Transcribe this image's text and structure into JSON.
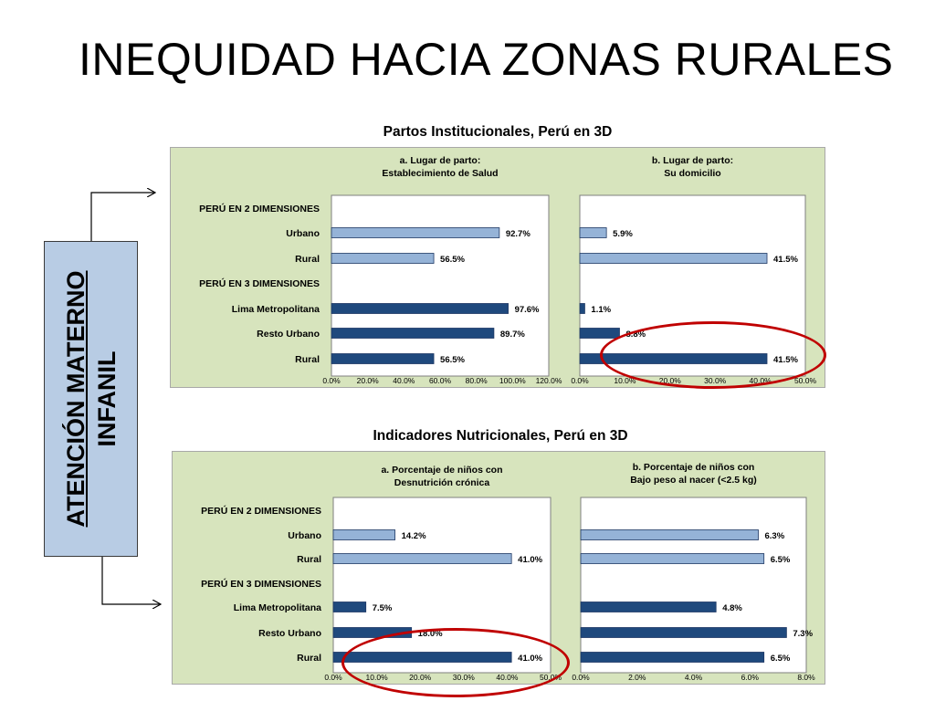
{
  "slide_title": "INEQUIDAD HACIA ZONAS RURALES",
  "side_box": {
    "line1": "ATENCIÓN MATERNO",
    "line2": "INFANIL",
    "fill": "#b8cce4"
  },
  "colors": {
    "light_bar": "#95b3d7",
    "dark_bar": "#1f497d",
    "panel": "#d7e4bd",
    "highlight": "#c00000"
  },
  "sections": [
    {
      "title": "Partos Institucionales, Perú en 3D",
      "row_labels": [
        "PERÚ EN 2 DIMENSIONES",
        "Urbano",
        "Rural",
        "PERÚ EN 3 DIMENSIONES",
        "Lima Metropolitana",
        "Resto Urbano",
        "Rural"
      ]
    },
    {
      "title": "Indicadores Nutricionales, Perú en 3D",
      "row_labels": [
        "PERÚ EN 2 DIMENSIONES",
        "Urbano",
        "Rural",
        "PERÚ EN 3 DIMENSIONES",
        "Lima Metropolitana",
        "Resto Urbano",
        "Rural"
      ]
    }
  ],
  "chart_data": [
    {
      "type": "bar",
      "orientation": "horizontal",
      "title": [
        "a. Lugar de parto:",
        "Establecimiento de Salud"
      ],
      "categories": [
        "Urbano",
        "Rural",
        "Lima Metropolitana",
        "Resto Urbano",
        "Rural"
      ],
      "values": [
        92.7,
        56.5,
        97.6,
        89.7,
        56.5
      ],
      "data_labels": [
        "92.7%",
        "56.5%",
        "97.6%",
        "89.7%",
        "56.5%"
      ],
      "series_style": [
        "light",
        "light",
        "dark",
        "dark",
        "dark"
      ],
      "xlim": [
        0,
        120
      ],
      "ticks": [
        "0.0%",
        "20.0%",
        "40.0%",
        "60.0%",
        "80.0%",
        "100.0%",
        "120.0%"
      ]
    },
    {
      "type": "bar",
      "orientation": "horizontal",
      "title": [
        "b. Lugar de parto:",
        "Su domicilio"
      ],
      "categories": [
        "Urbano",
        "Rural",
        "Lima Metropolitana",
        "Resto Urbano",
        "Rural"
      ],
      "values": [
        5.9,
        41.5,
        1.1,
        8.8,
        41.5
      ],
      "data_labels": [
        "5.9%",
        "41.5%",
        "1.1%",
        "8.8%",
        "41.5%"
      ],
      "series_style": [
        "light",
        "light",
        "dark",
        "dark",
        "dark"
      ],
      "xlim": [
        0,
        50
      ],
      "ticks": [
        "0.0%",
        "10.0%",
        "20.0%",
        "30.0%",
        "40.0%",
        "50.0%"
      ],
      "highlighted_category_index": 4
    },
    {
      "type": "bar",
      "orientation": "horizontal",
      "title": [
        "a. Porcentaje de niños con",
        "Desnutrición crónica"
      ],
      "categories": [
        "Urbano",
        "Rural",
        "Lima Metropolitana",
        "Resto Urbano",
        "Rural"
      ],
      "values": [
        14.2,
        41.0,
        7.5,
        18.0,
        41.0
      ],
      "data_labels": [
        "14.2%",
        "41.0%",
        "7.5%",
        "18.0%",
        "41.0%"
      ],
      "series_style": [
        "light",
        "light",
        "dark",
        "dark",
        "dark"
      ],
      "xlim": [
        0,
        50
      ],
      "ticks": [
        "0.0%",
        "10.0%",
        "20.0%",
        "30.0%",
        "40.0%",
        "50.0%"
      ],
      "highlighted_category_index": 4
    },
    {
      "type": "bar",
      "orientation": "horizontal",
      "title": [
        "b. Porcentaje de niños con",
        "Bajo peso al nacer (<2.5 kg)"
      ],
      "categories": [
        "Urbano",
        "Rural",
        "Lima Metropolitana",
        "Resto Urbano",
        "Rural"
      ],
      "values": [
        6.3,
        6.5,
        4.8,
        7.3,
        6.5
      ],
      "data_labels": [
        "6.3%",
        "6.5%",
        "4.8%",
        "7.3%",
        "6.5%"
      ],
      "series_style": [
        "light",
        "light",
        "dark",
        "dark",
        "dark"
      ],
      "xlim": [
        0,
        8
      ],
      "ticks": [
        "0.0%",
        "2.0%",
        "4.0%",
        "6.0%",
        "8.0%"
      ]
    }
  ]
}
